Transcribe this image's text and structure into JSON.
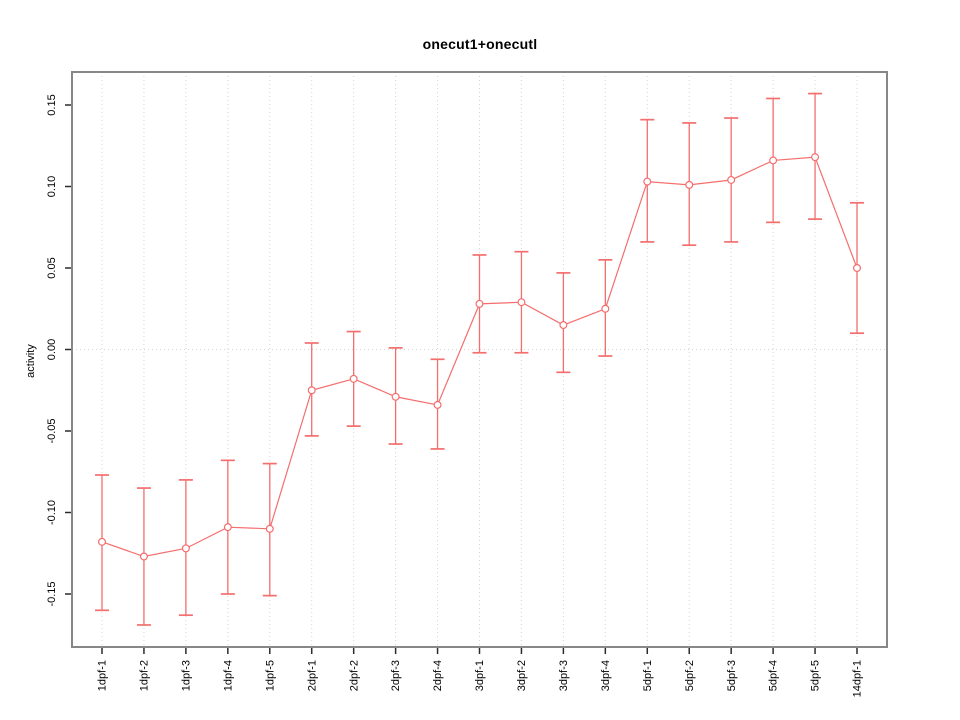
{
  "chart_data": {
    "type": "line",
    "title": "onecut1+onecutl",
    "ylabel": "activity",
    "xlabel": "",
    "categories": [
      "1dpf-1",
      "1dpf-2",
      "1dpf-3",
      "1dpf-4",
      "1dpf-5",
      "2dpf-1",
      "2dpf-2",
      "2dpf-3",
      "2dpf-4",
      "3dpf-1",
      "3dpf-2",
      "3dpf-3",
      "3dpf-4",
      "5dpf-1",
      "5dpf-2",
      "5dpf-3",
      "5dpf-4",
      "5dpf-5",
      "14dpf-1"
    ],
    "series": [
      {
        "name": "activity",
        "values": [
          -0.118,
          -0.127,
          -0.122,
          -0.109,
          -0.11,
          -0.025,
          -0.018,
          -0.029,
          -0.034,
          0.028,
          0.029,
          0.015,
          0.025,
          0.103,
          0.101,
          0.104,
          0.116,
          0.118,
          0.05
        ],
        "error_high": [
          -0.077,
          -0.085,
          -0.08,
          -0.068,
          -0.07,
          0.004,
          0.011,
          0.001,
          -0.006,
          0.058,
          0.06,
          0.047,
          0.055,
          0.141,
          0.139,
          0.142,
          0.154,
          0.157,
          0.09
        ],
        "error_low": [
          -0.16,
          -0.169,
          -0.163,
          -0.15,
          -0.151,
          -0.053,
          -0.047,
          -0.058,
          -0.061,
          -0.002,
          -0.002,
          -0.014,
          -0.004,
          0.066,
          0.064,
          0.066,
          0.078,
          0.08,
          0.01
        ]
      }
    ],
    "yticks": [
      -0.15,
      -0.1,
      -0.05,
      0.0,
      0.05,
      0.1,
      0.15
    ],
    "ytick_labels": [
      "-0.15",
      "-0.10",
      "-0.05",
      "0.00",
      "0.05",
      "0.10",
      "0.15"
    ],
    "ylim": [
      -0.182,
      0.17
    ],
    "grid": {
      "vertical_per_category": true,
      "horizontal_zero_line": true,
      "style": "dotted"
    },
    "legend_position": "none",
    "marker": "open-circle",
    "error_bars": true,
    "colors": {
      "series": "#f46e6e",
      "grid": "#d4d4d4",
      "frame": "#878787",
      "tick": "#2b2b2b",
      "text": "#000000",
      "background": "#ffffff"
    }
  }
}
